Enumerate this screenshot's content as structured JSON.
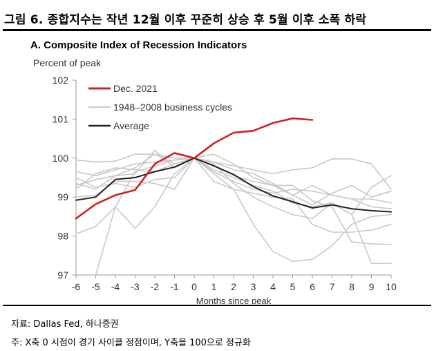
{
  "figure_title": "그림 6. 종합지수는 작년 12월 이후 꾸준히 상승 후 5월 이후 소폭 하락",
  "panel_title": "A. Composite Index of Recession Indicators",
  "y_unit_label": "Percent of peak",
  "source": "자료: Dallas Fed, 하나증권",
  "note": "주: X축 0 시점이 경기 사이클 정점이며, Y축을 100으로 정규화",
  "colors": {
    "current": "#d42020",
    "historical": "#c8c8c8",
    "average": "#222222",
    "axis": "#9a9a9a"
  },
  "chart_data": {
    "type": "line",
    "title": "A. Composite Index of Recession Indicators",
    "xlabel": "Months since peak",
    "ylabel": "Percent of peak",
    "xlim": [
      -6,
      10
    ],
    "ylim": [
      97,
      102
    ],
    "x_ticks": [
      -6,
      -5,
      -4,
      -3,
      -2,
      -1,
      0,
      1,
      2,
      3,
      4,
      5,
      6,
      7,
      8,
      9,
      10
    ],
    "y_ticks": [
      97,
      98,
      99,
      100,
      101,
      102
    ],
    "legend": {
      "position": "top-left",
      "entries": [
        "Dec. 2021",
        "1948–2008 business cycles",
        "Average"
      ]
    },
    "series": [
      {
        "name": "Dec. 2021",
        "role": "current",
        "x": [
          -6,
          -5,
          -4,
          -3,
          -2,
          -1,
          0,
          1,
          2,
          3,
          4,
          5,
          6
        ],
        "values": [
          98.45,
          98.82,
          99.05,
          99.18,
          99.85,
          100.13,
          100.0,
          100.38,
          100.65,
          100.7,
          100.9,
          101.02,
          100.98
        ]
      },
      {
        "name": "1948–2008 business cycles",
        "role": "historical",
        "x": [
          -6,
          -5,
          -4,
          -3,
          -2,
          -1,
          0,
          1,
          2,
          3,
          4,
          5,
          6,
          7,
          8,
          9,
          10
        ],
        "values": [
          99.65,
          99.55,
          99.7,
          99.85,
          99.9,
          99.95,
          100.0,
          99.9,
          99.8,
          99.7,
          99.6,
          99.7,
          99.75,
          99.98,
          99.98,
          99.85,
          99.2
        ]
      },
      {
        "role": "historical",
        "x": [
          -6,
          -5,
          -4,
          -3,
          -2,
          -1,
          0,
          1,
          2,
          3,
          4,
          5,
          6,
          7,
          8,
          9,
          10
        ],
        "values": [
          99.95,
          99.9,
          99.92,
          100.1,
          100.1,
          100.0,
          100.0,
          99.6,
          99.2,
          98.3,
          97.6,
          97.35,
          97.4,
          97.75,
          98.3,
          98.5,
          98.55
        ]
      },
      {
        "role": "historical",
        "x": [
          -6,
          -5,
          -4,
          -3,
          -2,
          -1,
          0,
          1,
          2,
          3,
          4,
          5,
          6,
          7,
          8,
          9,
          10
        ],
        "values": [
          99.0,
          99.05,
          99.4,
          99.4,
          99.35,
          99.2,
          100.0,
          99.85,
          99.35,
          99.0,
          98.75,
          98.55,
          98.45,
          98.85,
          98.55,
          97.3,
          97.3
        ]
      },
      {
        "role": "historical",
        "x": [
          -6,
          -5,
          -4,
          -3,
          -2,
          -1,
          0,
          1,
          2,
          3,
          4,
          5,
          6,
          7,
          8,
          9,
          10
        ],
        "values": [
          98.05,
          98.25,
          98.75,
          98.2,
          98.75,
          99.6,
          100.0,
          99.4,
          99.2,
          99.1,
          99.0,
          98.95,
          98.3,
          98.1,
          98.1,
          98.15,
          98.3
        ]
      },
      {
        "role": "historical",
        "x": [
          -5,
          -4,
          -3,
          -2,
          -1,
          0,
          1,
          2,
          3,
          4,
          5,
          6,
          7,
          8,
          9,
          10
        ],
        "values": [
          97.0,
          98.75,
          99.65,
          99.8,
          99.95,
          100.0,
          99.7,
          99.5,
          99.3,
          99.15,
          98.85,
          98.75,
          98.85,
          98.55,
          99.25,
          99.55
        ]
      },
      {
        "role": "historical",
        "x": [
          -6,
          -5,
          -4,
          -3,
          -2,
          -1,
          0,
          1,
          2,
          3,
          4,
          5,
          6,
          7,
          8,
          9,
          10
        ],
        "values": [
          99.35,
          99.2,
          99.55,
          99.75,
          100.1,
          99.85,
          100.0,
          99.65,
          99.4,
          99.2,
          99.1,
          99.2,
          99.15,
          99.05,
          98.95,
          98.95,
          98.85
        ]
      },
      {
        "role": "historical",
        "x": [
          -6,
          -5,
          -4,
          -3,
          -2,
          -1,
          0,
          1,
          2,
          3,
          4,
          5,
          6,
          7,
          8,
          9,
          10
        ],
        "values": [
          99.2,
          99.6,
          99.75,
          99.7,
          99.65,
          99.85,
          100.0,
          100.1,
          99.85,
          99.5,
          99.3,
          99.05,
          99.3,
          99.05,
          98.95,
          98.75,
          98.7
        ]
      },
      {
        "role": "historical",
        "x": [
          -6,
          -5,
          -4,
          -3,
          -2,
          -1,
          0,
          1,
          2,
          3,
          4,
          5,
          6,
          7,
          8,
          9,
          10
        ],
        "values": [
          99.5,
          99.25,
          99.35,
          99.25,
          99.45,
          99.5,
          100.0,
          99.8,
          99.55,
          99.4,
          99.3,
          99.3,
          98.9,
          98.75,
          97.85,
          97.8,
          97.78
        ]
      },
      {
        "role": "historical",
        "x": [
          -6,
          -5,
          -4,
          -3,
          -2,
          -1,
          0,
          1,
          2,
          3,
          4,
          5,
          6,
          7,
          8,
          9,
          10
        ],
        "values": [
          99.3,
          99.45,
          99.55,
          99.6,
          100.2,
          99.75,
          100.0,
          99.9,
          99.7,
          99.6,
          99.35,
          99.05,
          98.8,
          99.1,
          99.3,
          99.0,
          99.15
        ]
      },
      {
        "name": "Average",
        "role": "average",
        "x": [
          -6,
          -5,
          -4,
          -3,
          -2,
          -1,
          0,
          1,
          2,
          3,
          4,
          5,
          6,
          7,
          8,
          9,
          10
        ],
        "values": [
          98.92,
          99.0,
          99.45,
          99.5,
          99.65,
          99.77,
          100.0,
          99.8,
          99.58,
          99.27,
          99.03,
          98.88,
          98.72,
          98.8,
          98.7,
          98.65,
          98.62
        ]
      }
    ]
  }
}
